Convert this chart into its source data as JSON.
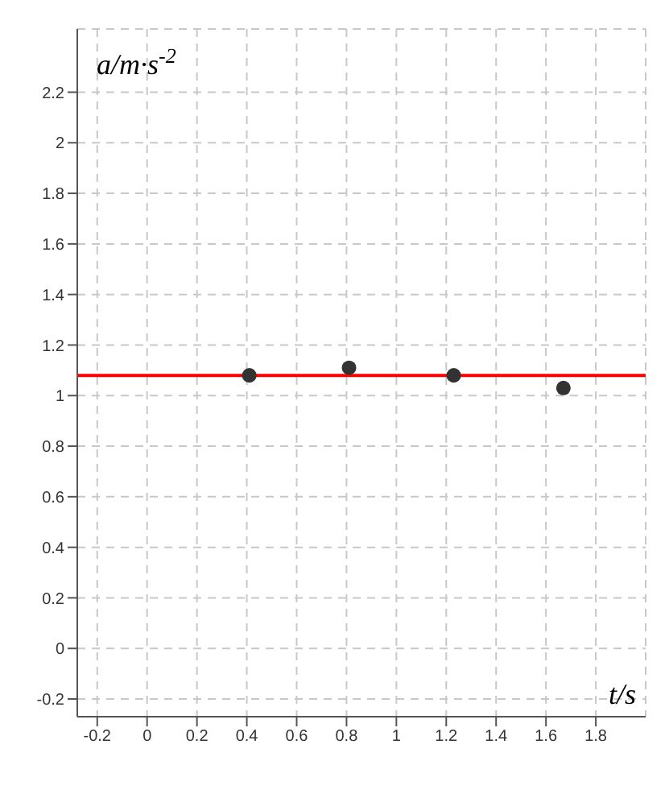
{
  "chart_data": {
    "type": "scatter",
    "xlabel": "t/s",
    "ylabel": "a/m·s$^{-2}$",
    "x": [
      0.41,
      0.81,
      1.23,
      1.67
    ],
    "series": [
      {
        "color": "#333333",
        "values": [
          1.08,
          1.11,
          1.08,
          1.03
        ]
      }
    ],
    "xlim": [
      -0.28,
      2.0
    ],
    "xticks": [
      -0.2,
      0,
      0.2,
      0.4,
      0.6,
      0.8,
      1,
      1.2,
      1.4,
      1.6,
      1.8
    ],
    "ylim": [
      -0.27,
      2.45
    ],
    "yticks": [
      -0.2,
      0,
      0.2,
      0.4,
      0.6,
      0.8,
      1,
      1.2,
      1.4,
      1.6,
      1.8,
      2,
      2.2
    ],
    "ref_lines": [
      {
        "axis": "y",
        "value": 1.08,
        "color": "#ff0000",
        "line_style": "solid"
      }
    ],
    "grid": true,
    "marker": "circle",
    "legend": false
  }
}
